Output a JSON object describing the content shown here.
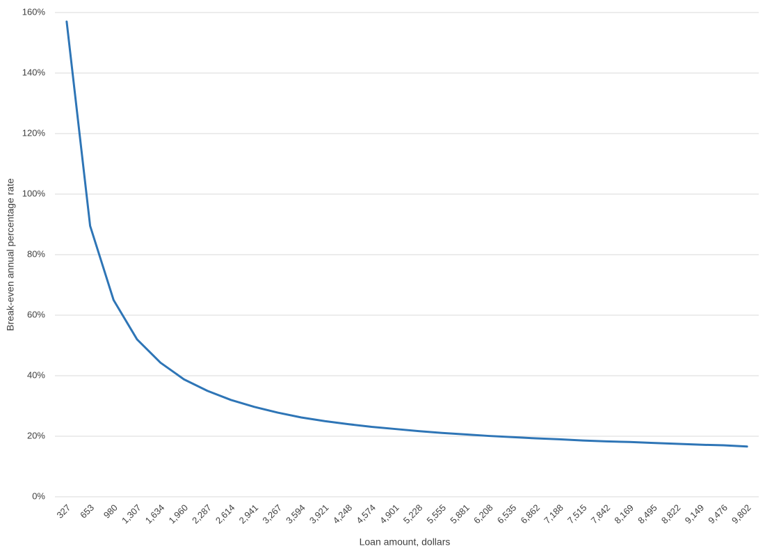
{
  "chart_data": {
    "type": "line",
    "x_label": "Loan amount, dollars",
    "y_label": "Break-even annual percentage rate",
    "categories": [
      "327",
      "653",
      "980",
      "1,307",
      "1,634",
      "1,960",
      "2,287",
      "2,614",
      "2,941",
      "3,267",
      "3,594",
      "3,921",
      "4,248",
      "4,574",
      "4,901",
      "5,228",
      "5,555",
      "5,881",
      "6,208",
      "6,535",
      "6,862",
      "7,188",
      "7,515",
      "7,842",
      "8,169",
      "8,495",
      "8,822",
      "9,149",
      "9,476",
      "9,802"
    ],
    "series": [
      {
        "color": "#2e75b6",
        "values": [
          157,
          89.5,
          65,
          52,
          44.3,
          38.8,
          35,
          32,
          29.7,
          27.8,
          26.2,
          25,
          24,
          23.1,
          22.4,
          21.7,
          21.1,
          20.6,
          20.1,
          19.7,
          19.3,
          19,
          18.6,
          18.3,
          18.1,
          17.8,
          17.5,
          17.2,
          17,
          16.6
        ]
      }
    ],
    "ylim": [
      0,
      160
    ],
    "yticks": [
      {
        "value": 0,
        "label": "0%"
      },
      {
        "value": 20,
        "label": "20%"
      },
      {
        "value": 40,
        "label": "40%"
      },
      {
        "value": 60,
        "label": "60%"
      },
      {
        "value": 80,
        "label": "80%"
      },
      {
        "value": 100,
        "label": "100%"
      },
      {
        "value": 120,
        "label": "120%"
      },
      {
        "value": 140,
        "label": "140%"
      },
      {
        "value": 160,
        "label": "160%"
      }
    ],
    "grid": true
  }
}
